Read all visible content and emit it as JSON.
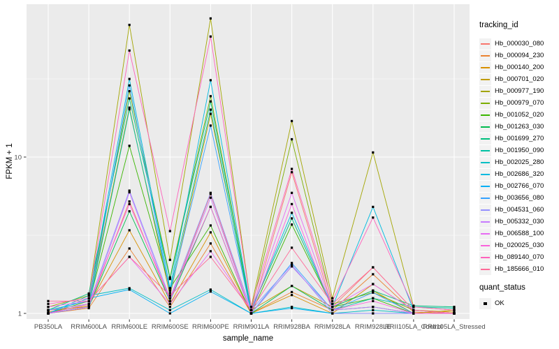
{
  "figure": {
    "background": "#FFFFFF",
    "panel_background": "#EBEBEB",
    "grid_color": "#FFFFFF",
    "axis_text_color": "#4D4D4D",
    "tick_mark_color": "#333333",
    "point_color": "#000000",
    "point_marker": "square"
  },
  "chart_data": {
    "type": "line",
    "title": "",
    "xlabel": "sample_name",
    "ylabel": "FPKM + 1",
    "y_scale": "log10",
    "y_ticks": [
      1,
      10
    ],
    "y_minor_ticks": [
      3.162,
      31.62
    ],
    "ylim": [
      0.92,
      95
    ],
    "grid": true,
    "legend_position": "right",
    "legend_title": "tracking_id",
    "legend2_title": "quant_status",
    "legend2_items": [
      {
        "label": "OK",
        "marker": "black-square"
      }
    ],
    "categories": [
      "PB350LA",
      "RRIM600LA",
      "RRIM600LE",
      "RRIM600SE",
      "RRIM600PE",
      "RRIM901LA",
      "RRIM928BA",
      "RRIM928LA",
      "RRIM928LE",
      "RRII105LA_Control",
      "RRII105LA_Stressed"
    ],
    "series": [
      {
        "name": "Hb_000030_080",
        "color": "#F8766D",
        "values": [
          1.05,
          1.1,
          5.2,
          1.2,
          5.8,
          1.0,
          8.0,
          1.1,
          1.97,
          1.05,
          1.0
        ]
      },
      {
        "name": "Hb_000094_230",
        "color": "#EA8331",
        "values": [
          1.0,
          1.08,
          2.6,
          1.1,
          2.8,
          1.0,
          1.37,
          1.05,
          1.78,
          1.02,
          1.0
        ]
      },
      {
        "name": "Hb_000140_200",
        "color": "#D89000",
        "values": [
          1.02,
          1.12,
          3.4,
          1.15,
          3.3,
          1.0,
          1.31,
          1.0,
          1.54,
          1.05,
          1.02
        ]
      },
      {
        "name": "Hb_000701_020",
        "color": "#C09B00",
        "values": [
          1.05,
          1.15,
          20.7,
          1.3,
          18.9,
          1.05,
          1.5,
          1.1,
          1.4,
          1.0,
          1.05
        ]
      },
      {
        "name": "Hb_000977_190",
        "color": "#A3A500",
        "values": [
          1.1,
          1.3,
          70.0,
          2.2,
          77.0,
          1.1,
          17.0,
          1.25,
          10.7,
          1.1,
          1.05
        ]
      },
      {
        "name": "Hb_000979_070",
        "color": "#7CAE00",
        "values": [
          1.0,
          1.2,
          26.4,
          1.7,
          24.5,
          1.05,
          13.0,
          1.15,
          1.36,
          1.05,
          1.0
        ]
      },
      {
        "name": "Hb_001052_020",
        "color": "#39B600",
        "values": [
          1.0,
          1.15,
          11.8,
          1.45,
          3.65,
          1.0,
          3.7,
          1.1,
          1.25,
          1.0,
          1.0
        ]
      },
      {
        "name": "Hb_001263_030",
        "color": "#00BB4E",
        "values": [
          1.0,
          1.1,
          4.5,
          1.2,
          4.8,
          1.0,
          1.5,
          1.05,
          1.1,
          1.0,
          1.0
        ]
      },
      {
        "name": "Hb_001699_270",
        "color": "#00BF7D",
        "values": [
          1.05,
          1.34,
          23.7,
          1.66,
          22.7,
          1.05,
          4.05,
          1.1,
          1.4,
          1.12,
          1.1
        ]
      },
      {
        "name": "Hb_001950_090",
        "color": "#00C1A3",
        "values": [
          1.0,
          1.1,
          20.2,
          1.4,
          20.1,
          1.0,
          2.0,
          1.05,
          1.25,
          1.1,
          1.08
        ]
      },
      {
        "name": "Hb_002025_280",
        "color": "#00BFC4",
        "values": [
          1.0,
          1.3,
          1.45,
          1.05,
          1.42,
          1.0,
          1.1,
          1.0,
          1.05,
          1.0,
          1.0
        ]
      },
      {
        "name": "Hb_002686_320",
        "color": "#00BAE0",
        "values": [
          1.05,
          1.2,
          31.6,
          1.45,
          31.0,
          1.05,
          4.4,
          1.1,
          4.8,
          1.05,
          1.0
        ]
      },
      {
        "name": "Hb_002766_070",
        "color": "#00B0F6",
        "values": [
          1.0,
          1.25,
          1.42,
          1.0,
          1.38,
          1.0,
          1.08,
          1.0,
          1.0,
          1.0,
          1.0
        ]
      },
      {
        "name": "Hb_003656_080",
        "color": "#35A2FF",
        "values": [
          1.0,
          1.1,
          28.7,
          1.35,
          15.9,
          1.0,
          2.1,
          1.05,
          1.36,
          1.0,
          1.0
        ]
      },
      {
        "name": "Hb_004531_060",
        "color": "#9590FF",
        "values": [
          1.05,
          1.15,
          6.1,
          1.25,
          5.9,
          1.05,
          2.05,
          1.0,
          1.0,
          1.0,
          1.0
        ]
      },
      {
        "name": "Hb_005332_030",
        "color": "#C77CFF",
        "values": [
          1.0,
          1.1,
          5.95,
          1.2,
          5.5,
          1.0,
          2.0,
          1.05,
          1.1,
          1.0,
          1.0
        ]
      },
      {
        "name": "Hb_006588_100",
        "color": "#E76BF3",
        "values": [
          1.1,
          1.2,
          2.3,
          1.15,
          2.5,
          1.05,
          5.9,
          1.1,
          1.54,
          1.05,
          1.0
        ]
      },
      {
        "name": "Hb_020025_030",
        "color": "#FA62DB",
        "values": [
          1.0,
          1.15,
          5.0,
          1.25,
          4.8,
          1.0,
          5.0,
          1.05,
          1.2,
          1.0,
          1.0
        ]
      },
      {
        "name": "Hb_089140_070",
        "color": "#FF62BC",
        "values": [
          1.15,
          1.25,
          48.0,
          3.36,
          59.0,
          1.1,
          8.4,
          1.2,
          4.1,
          1.1,
          1.05
        ]
      },
      {
        "name": "Hb_185666_010",
        "color": "#FF6A98",
        "values": [
          1.2,
          1.2,
          2.3,
          1.3,
          2.3,
          1.05,
          2.63,
          1.15,
          1.97,
          1.05,
          1.0
        ]
      }
    ]
  }
}
